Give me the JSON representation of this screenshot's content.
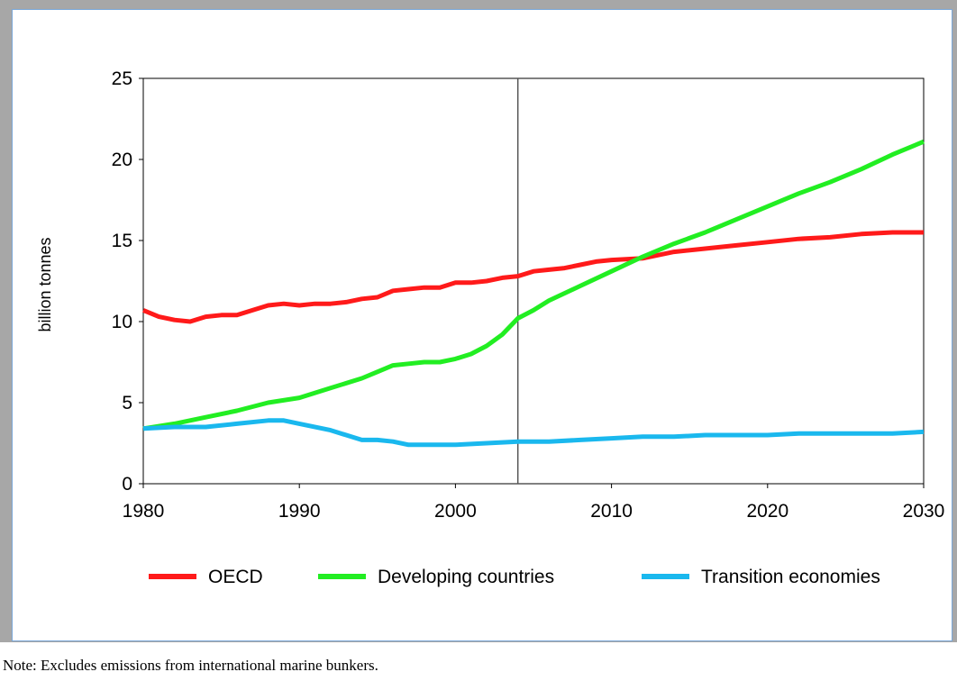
{
  "chart_data": {
    "type": "line",
    "title": "",
    "xlabel": "",
    "ylabel": "billion tonnes",
    "xlim": [
      1980,
      2030
    ],
    "ylim": [
      0,
      25
    ],
    "x_ticks": [
      1980,
      1990,
      2000,
      2010,
      2020,
      2030
    ],
    "y_ticks": [
      0,
      5,
      10,
      15,
      20,
      25
    ],
    "grid": false,
    "legend_position": "bottom",
    "vertical_marker_x": 2004,
    "series": [
      {
        "name": "OECD",
        "color": "#ff1a1a",
        "x": [
          1980,
          1981,
          1982,
          1983,
          1984,
          1985,
          1986,
          1987,
          1988,
          1989,
          1990,
          1991,
          1992,
          1993,
          1994,
          1995,
          1996,
          1997,
          1998,
          1999,
          2000,
          2001,
          2002,
          2003,
          2004,
          2005,
          2006,
          2007,
          2008,
          2009,
          2010,
          2012,
          2014,
          2016,
          2018,
          2020,
          2022,
          2024,
          2026,
          2028,
          2030
        ],
        "values": [
          10.7,
          10.3,
          10.1,
          10.0,
          10.3,
          10.4,
          10.4,
          10.7,
          11.0,
          11.1,
          11.0,
          11.1,
          11.1,
          11.2,
          11.4,
          11.5,
          11.9,
          12.0,
          12.1,
          12.1,
          12.4,
          12.4,
          12.5,
          12.7,
          12.8,
          13.1,
          13.2,
          13.3,
          13.5,
          13.7,
          13.8,
          13.9,
          14.3,
          14.5,
          14.7,
          14.9,
          15.1,
          15.2,
          15.4,
          15.5,
          15.5
        ]
      },
      {
        "name": "Developing countries",
        "color": "#22ee22",
        "x": [
          1980,
          1982,
          1984,
          1986,
          1988,
          1990,
          1992,
          1994,
          1995,
          1996,
          1997,
          1998,
          1999,
          2000,
          2001,
          2002,
          2003,
          2004,
          2005,
          2006,
          2008,
          2010,
          2012,
          2014,
          2016,
          2018,
          2020,
          2022,
          2024,
          2026,
          2028,
          2030
        ],
        "values": [
          3.4,
          3.7,
          4.1,
          4.5,
          5.0,
          5.3,
          5.9,
          6.5,
          6.9,
          7.3,
          7.4,
          7.5,
          7.5,
          7.7,
          8.0,
          8.5,
          9.2,
          10.2,
          10.7,
          11.3,
          12.2,
          13.1,
          14.0,
          14.8,
          15.5,
          16.3,
          17.1,
          17.9,
          18.6,
          19.4,
          20.3,
          21.1
        ]
      },
      {
        "name": "Transition economies",
        "color": "#1ab8ee",
        "x": [
          1980,
          1982,
          1984,
          1986,
          1988,
          1989,
          1990,
          1992,
          1994,
          1995,
          1996,
          1997,
          1998,
          2000,
          2002,
          2004,
          2006,
          2008,
          2010,
          2012,
          2014,
          2016,
          2018,
          2020,
          2022,
          2024,
          2026,
          2028,
          2030
        ],
        "values": [
          3.4,
          3.5,
          3.5,
          3.7,
          3.9,
          3.9,
          3.7,
          3.3,
          2.7,
          2.7,
          2.6,
          2.4,
          2.4,
          2.4,
          2.5,
          2.6,
          2.6,
          2.7,
          2.8,
          2.9,
          2.9,
          3.0,
          3.0,
          3.0,
          3.1,
          3.1,
          3.1,
          3.1,
          3.2
        ]
      }
    ]
  },
  "note": "Note: Excludes emissions from international marine bunkers."
}
